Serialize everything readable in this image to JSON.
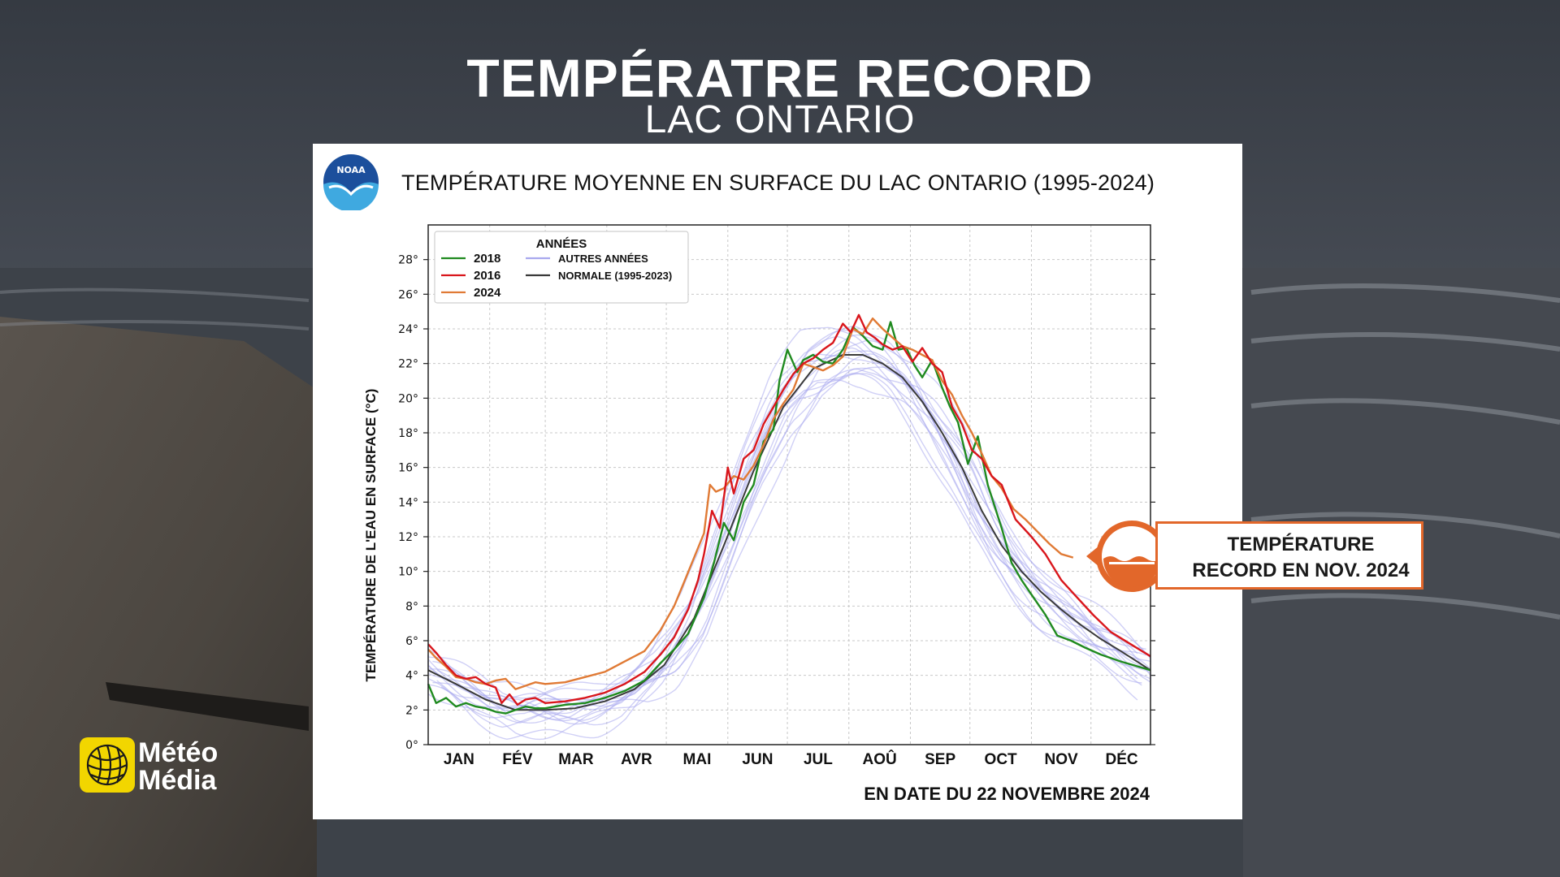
{
  "headline": {
    "title": "TEMPÉRATRE RECORD",
    "subtitle": "LAC ONTARIO"
  },
  "logos": {
    "noaa": "NOAA",
    "brand_line1": "Météo",
    "brand_line2": "Média"
  },
  "callout": {
    "line1": "TEMPÉRATURE",
    "line2": "RECORD EN NOV. 2024",
    "icon": "water-level-icon"
  },
  "colors": {
    "accent": "#e2672a",
    "s2018": "#1f8a1f",
    "s2016": "#d9161c",
    "s2024": "#e07a35",
    "other": "#a9a9ee",
    "normal": "#3a3a3a",
    "brand": "#f2d600"
  },
  "chart_data": {
    "type": "line",
    "title": "TEMPÉRATURE MOYENNE EN SURFACE DU LAC ONTARIO (1995-2024)",
    "ylabel": "TEMPÉRATURE DE L'EAU EN SURFACE (°C)",
    "xlabel": "",
    "as_of": "EN DATE DU 22 NOVEMBRE 2024",
    "ylim": [
      0,
      30
    ],
    "xlim": [
      1,
      365
    ],
    "grid": true,
    "months": [
      "JAN",
      "FÉV",
      "MAR",
      "AVR",
      "MAI",
      "JUN",
      "JUL",
      "AOÛ",
      "SEP",
      "OCT",
      "NOV",
      "DÉC"
    ],
    "yticks": [
      0,
      2,
      4,
      6,
      8,
      10,
      12,
      14,
      16,
      18,
      20,
      22,
      24,
      26,
      28
    ],
    "ytick_labels": [
      "0°",
      "2°",
      "4°",
      "6°",
      "8°",
      "10°",
      "12°",
      "14°",
      "16°",
      "18°",
      "20°",
      "22°",
      "24°",
      "26°",
      "28°"
    ],
    "legend": {
      "title": "ANNÉES",
      "position": "top-left",
      "entries": [
        {
          "label": "2018",
          "key": "s2018"
        },
        {
          "label": "2016",
          "key": "s2016"
        },
        {
          "label": "2024",
          "key": "s2024"
        },
        {
          "label": "AUTRES ANNÉES",
          "key": "other"
        },
        {
          "label": "NORMALE (1995-2023)",
          "key": "normal"
        }
      ]
    },
    "series": [
      {
        "name": "NORMALE (1995-2023)",
        "key": "normal",
        "x": [
          1,
          15,
          30,
          45,
          60,
          75,
          90,
          105,
          120,
          135,
          150,
          165,
          180,
          195,
          210,
          220,
          230,
          240,
          250,
          260,
          270,
          280,
          290,
          300,
          310,
          320,
          330,
          340,
          350,
          365
        ],
        "y": [
          4.3,
          3.5,
          2.6,
          2.0,
          2.0,
          2.1,
          2.5,
          3.2,
          4.6,
          7.3,
          11.5,
          15.8,
          19.5,
          21.7,
          22.5,
          22.5,
          22.0,
          21.2,
          19.8,
          18.0,
          16.0,
          13.5,
          11.5,
          10.0,
          8.8,
          7.8,
          6.9,
          6.1,
          5.4,
          4.3
        ]
      },
      {
        "name": "2018",
        "key": "s2018",
        "x": [
          1,
          5,
          10,
          15,
          20,
          25,
          30,
          35,
          40,
          45,
          50,
          55,
          60,
          70,
          80,
          90,
          100,
          110,
          118,
          125,
          132,
          140,
          145,
          150,
          155,
          160,
          165,
          170,
          175,
          178,
          182,
          187,
          190,
          195,
          200,
          205,
          210,
          215,
          220,
          225,
          230,
          234,
          238,
          242,
          246,
          250,
          255,
          260,
          264,
          268,
          273,
          278,
          283,
          290,
          295,
          300,
          306,
          312,
          318,
          325,
          332,
          340,
          350,
          365
        ],
        "y": [
          3.5,
          2.4,
          2.7,
          2.2,
          2.4,
          2.2,
          2.1,
          1.9,
          1.8,
          2.0,
          2.2,
          2.1,
          2.1,
          2.3,
          2.4,
          2.7,
          3.1,
          3.7,
          4.7,
          5.5,
          6.4,
          8.5,
          10.5,
          12.8,
          11.8,
          14.0,
          15.0,
          17.5,
          18.2,
          21.0,
          22.8,
          21.5,
          22.2,
          22.5,
          22.1,
          22.0,
          22.8,
          24.1,
          23.6,
          23.0,
          22.8,
          24.4,
          22.8,
          22.9,
          21.9,
          21.2,
          22.2,
          20.6,
          19.5,
          18.6,
          16.2,
          17.8,
          15.0,
          12.5,
          10.5,
          9.5,
          8.5,
          7.5,
          6.3,
          6.0,
          5.6,
          5.2,
          4.8,
          4.3
        ]
      },
      {
        "name": "2016",
        "key": "s2016",
        "x": [
          1,
          5,
          10,
          15,
          20,
          25,
          30,
          35,
          38,
          42,
          46,
          50,
          55,
          60,
          70,
          80,
          90,
          100,
          110,
          118,
          125,
          132,
          137,
          140,
          144,
          148,
          152,
          155,
          160,
          165,
          170,
          175,
          180,
          185,
          190,
          195,
          200,
          205,
          210,
          214,
          218,
          222,
          226,
          230,
          235,
          240,
          245,
          250,
          255,
          260,
          265,
          270,
          275,
          280,
          285,
          290,
          297,
          305,
          312,
          320,
          328,
          336,
          345,
          355,
          365
        ],
        "y": [
          5.8,
          5.3,
          4.6,
          4.0,
          3.8,
          3.9,
          3.5,
          3.3,
          2.4,
          2.9,
          2.3,
          2.6,
          2.7,
          2.4,
          2.5,
          2.7,
          3.0,
          3.5,
          4.2,
          5.2,
          6.2,
          7.8,
          9.5,
          11.0,
          13.5,
          12.5,
          16.0,
          14.5,
          16.5,
          17.0,
          18.5,
          19.5,
          20.5,
          21.4,
          22.0,
          22.3,
          22.8,
          23.2,
          24.3,
          23.8,
          24.8,
          23.8,
          23.5,
          23.1,
          22.8,
          23.0,
          22.1,
          22.9,
          22.0,
          21.5,
          19.5,
          18.5,
          17.0,
          16.5,
          15.5,
          15.0,
          13.0,
          12.0,
          11.0,
          9.5,
          8.5,
          7.5,
          6.5,
          5.8,
          5.1
        ]
      },
      {
        "name": "2024",
        "key": "s2024",
        "x": [
          1,
          5,
          10,
          15,
          20,
          25,
          30,
          35,
          40,
          45,
          50,
          55,
          60,
          70,
          80,
          90,
          100,
          110,
          118,
          125,
          130,
          135,
          140,
          143,
          146,
          150,
          155,
          160,
          165,
          170,
          175,
          180,
          185,
          190,
          195,
          200,
          205,
          210,
          215,
          220,
          225,
          230,
          235,
          240,
          245,
          250,
          255,
          260,
          265,
          270,
          275,
          280,
          285,
          290,
          296,
          302,
          308,
          314,
          320,
          326
        ],
        "y": [
          5.5,
          5.0,
          4.5,
          3.9,
          3.8,
          3.6,
          3.5,
          3.7,
          3.8,
          3.2,
          3.4,
          3.6,
          3.5,
          3.6,
          3.9,
          4.2,
          4.8,
          5.4,
          6.6,
          8.0,
          9.4,
          10.8,
          12.2,
          15.0,
          14.6,
          14.8,
          15.5,
          15.3,
          16.1,
          17.3,
          18.8,
          19.7,
          20.5,
          22.0,
          21.8,
          21.6,
          21.9,
          22.4,
          24.0,
          23.7,
          24.6,
          24.0,
          23.5,
          23.0,
          22.8,
          22.5,
          22.2,
          21.0,
          20.2,
          19.0,
          18.0,
          16.8,
          15.5,
          14.8,
          13.6,
          13.0,
          12.3,
          11.6,
          11.0,
          10.8
        ]
      }
    ]
  }
}
